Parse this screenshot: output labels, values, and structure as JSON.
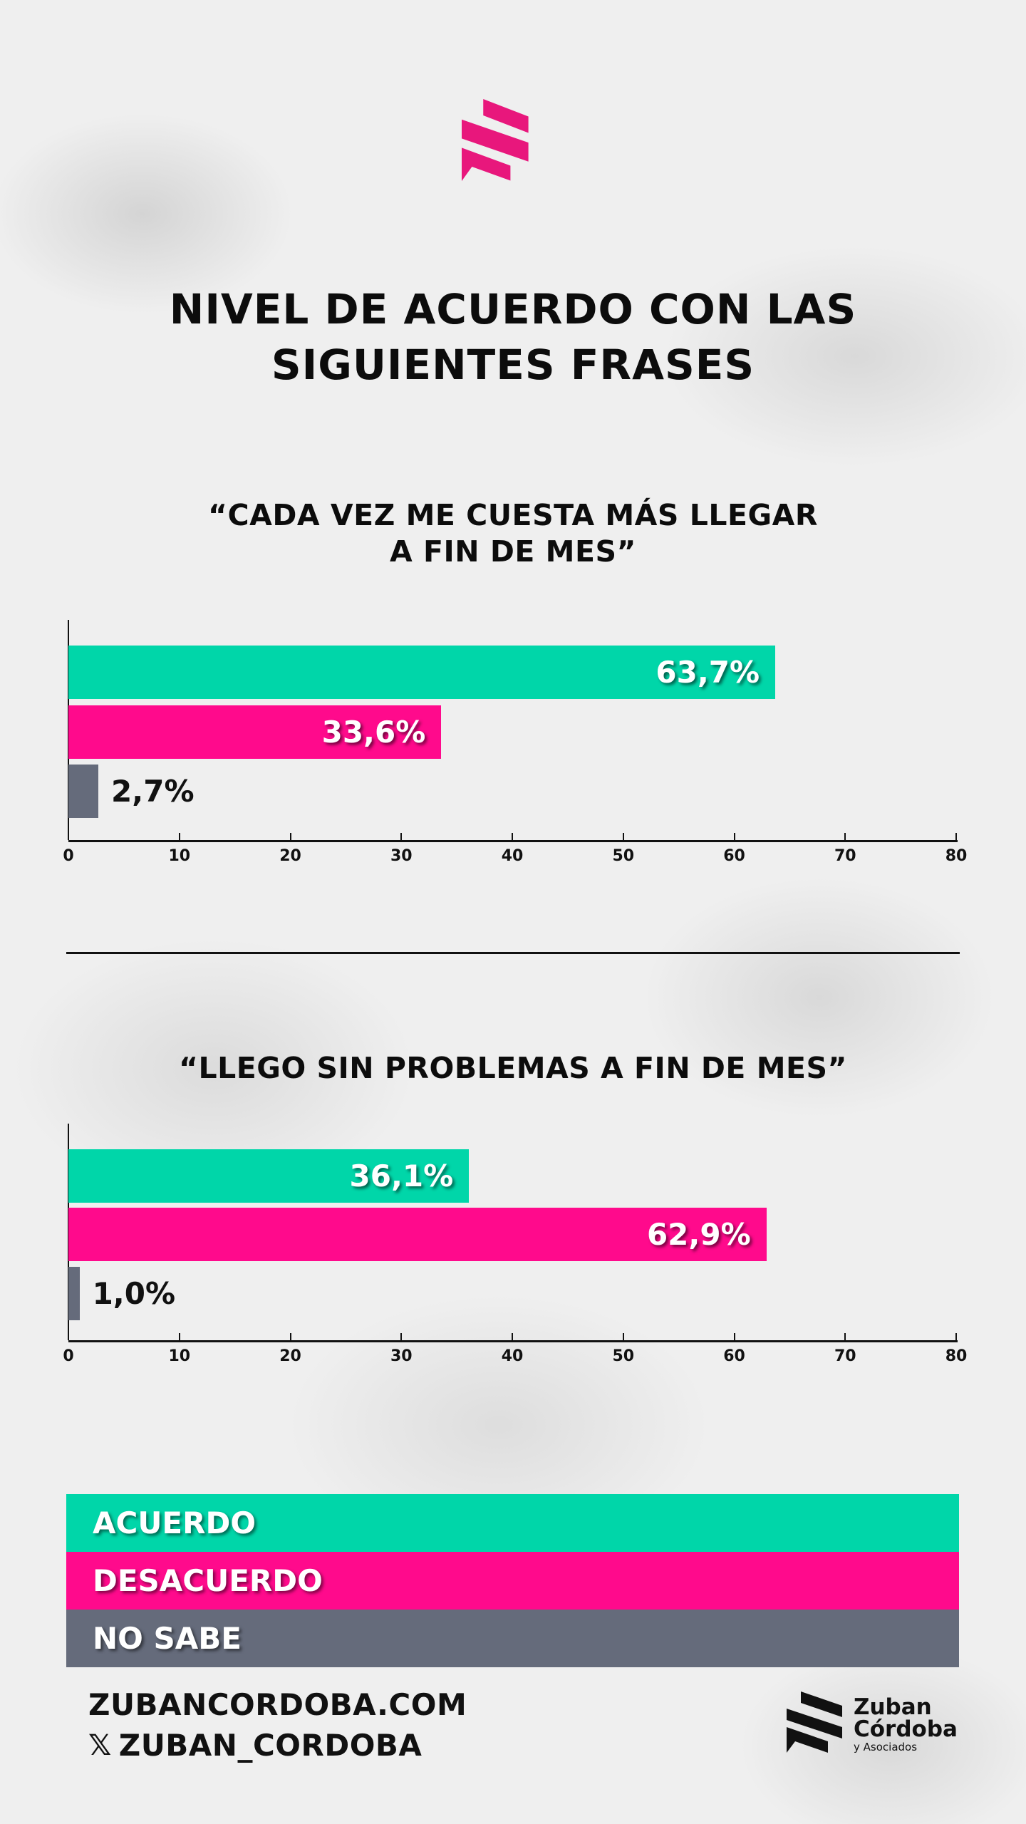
{
  "colors": {
    "acuerdo": "#00d6a9",
    "desacuerdo": "#ff0a8c",
    "no_sabe": "#656b7b",
    "brand": "#e8177c"
  },
  "header": {
    "title_line1": "NIVEL DE ACUERDO CON LAS",
    "title_line2": "SIGUIENTES FRASES"
  },
  "chart_data": [
    {
      "type": "bar",
      "orientation": "horizontal",
      "title_line1": "“CADA VEZ ME CUESTA MÁS LLEGAR",
      "title_line2": "A FIN DE MES”",
      "categories": [
        "Acuerdo",
        "Desacuerdo",
        "No sabe"
      ],
      "values": [
        63.7,
        33.6,
        2.7
      ],
      "labels": [
        "63,7%",
        "33,6%",
        "2,7%"
      ],
      "xlim": [
        0,
        80
      ],
      "xticks": [
        "0",
        "10",
        "20",
        "30",
        "40",
        "50",
        "60",
        "70",
        "80"
      ]
    },
    {
      "type": "bar",
      "orientation": "horizontal",
      "title_line1": "“LLEGO SIN PROBLEMAS A FIN DE MES”",
      "title_line2": "",
      "categories": [
        "Acuerdo",
        "Desacuerdo",
        "No sabe"
      ],
      "values": [
        36.1,
        62.9,
        1.0
      ],
      "labels": [
        "36,1%",
        "62,9%",
        "1,0%"
      ],
      "xlim": [
        0,
        80
      ],
      "xticks": [
        "0",
        "10",
        "20",
        "30",
        "40",
        "50",
        "60",
        "70",
        "80"
      ]
    }
  ],
  "legend": [
    "ACUERDO",
    "DESACUERDO",
    "NO SABE"
  ],
  "footer": {
    "website": "ZUBANCORDOBA.COM",
    "social_icon": "x-icon",
    "social": "ZUBAN_CORDOBA"
  },
  "brand": {
    "name_line1": "Zuban",
    "name_line2": "Córdoba",
    "name_line3": "y Asociados"
  }
}
